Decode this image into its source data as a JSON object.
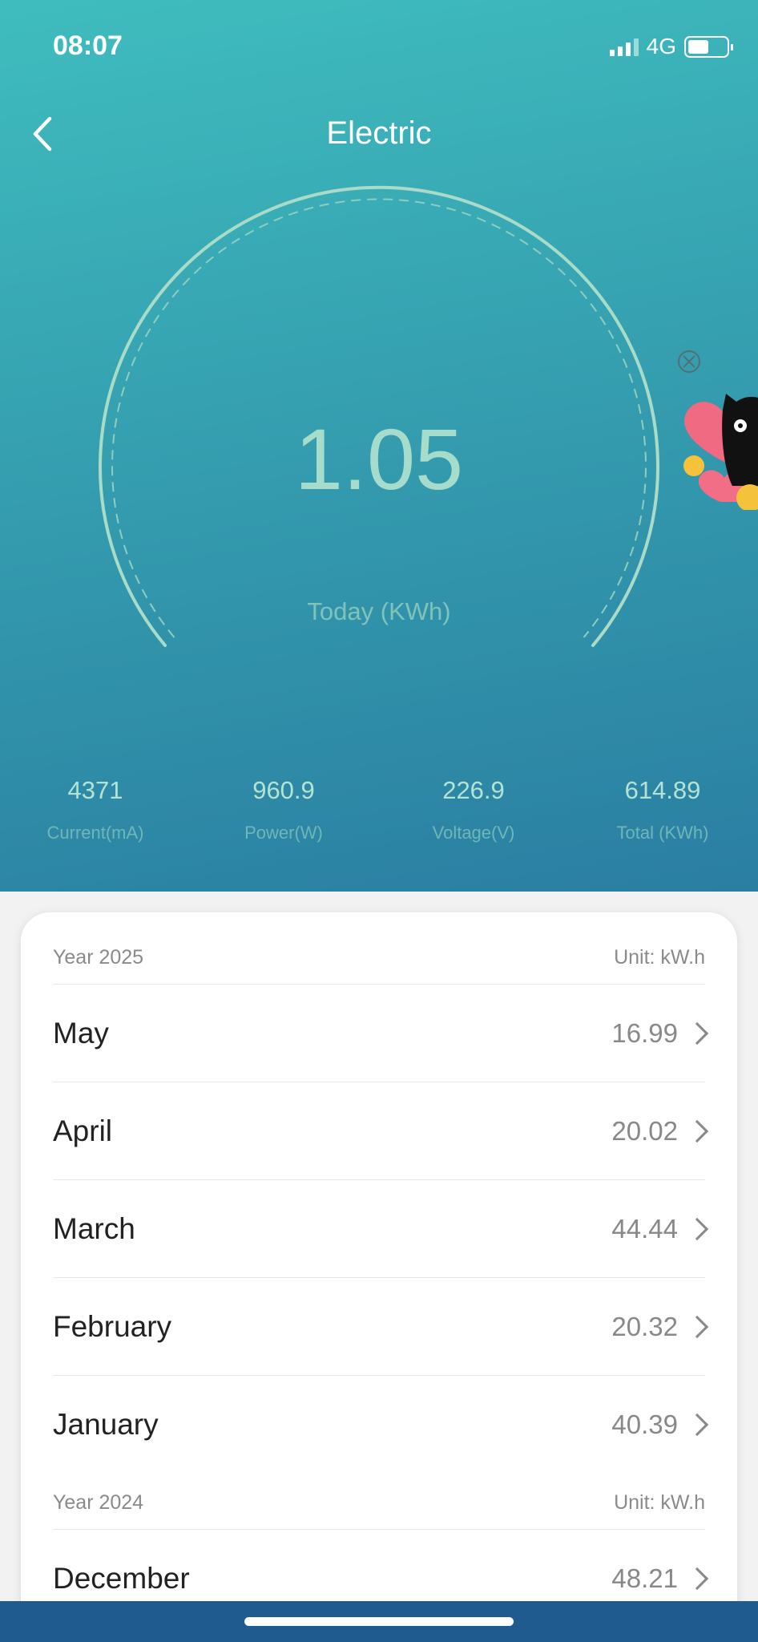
{
  "status": {
    "time": "08:07",
    "network": "4G",
    "battery_percent": 55
  },
  "header": {
    "title": "Electric"
  },
  "gauge": {
    "value": "1.05",
    "label": "Today (KWh)"
  },
  "stats": [
    {
      "value": "4371",
      "label": "Current(mA)"
    },
    {
      "value": "960.9",
      "label": "Power(W)"
    },
    {
      "value": "226.9",
      "label": "Voltage(V)"
    },
    {
      "value": "614.89",
      "label": "Total (KWh)"
    }
  ],
  "history": [
    {
      "year": "Year 2025",
      "unit": "Unit: kW.h",
      "months": [
        {
          "month": "May",
          "value": "16.99"
        },
        {
          "month": "April",
          "value": "20.02"
        },
        {
          "month": "March",
          "value": "44.44"
        },
        {
          "month": "February",
          "value": "20.32"
        },
        {
          "month": "January",
          "value": "40.39"
        }
      ]
    },
    {
      "year": "Year 2024",
      "unit": "Unit: kW.h",
      "months": [
        {
          "month": "December",
          "value": "48.21"
        }
      ]
    }
  ]
}
